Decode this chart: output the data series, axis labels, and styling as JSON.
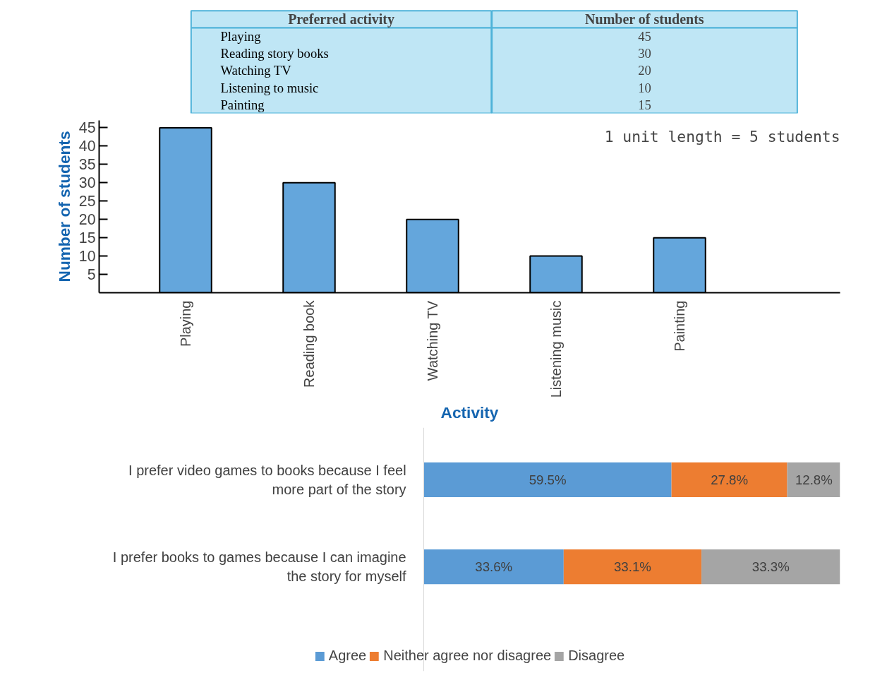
{
  "chart_data": [
    {
      "type": "other",
      "categories": [
        "Playing",
        "Reading story books",
        "Watching TV",
        "Listening to music",
        "Painting"
      ],
      "values": [
        45,
        30,
        20,
        10,
        15
      ],
      "annotations": [
        "Preferred activity",
        "Number of students"
      ],
      "color": "#bfe6f5",
      "data_labels": true
    },
    {
      "type": "bar",
      "categories": [
        "Playing",
        "Reading book",
        "Watching TV",
        "Listening music",
        "Painting"
      ],
      "values": [
        45,
        30,
        20,
        10,
        15
      ],
      "color": "#64a6dc",
      "ylim": [
        0,
        47
      ],
      "yticks": [
        5,
        10,
        15,
        20,
        25,
        30,
        35,
        40,
        45
      ],
      "xlabel": "Activity",
      "ylabel": "Number of students",
      "annotations": [
        "1 unit length = 5 students"
      ],
      "grid": false
    },
    {
      "type": "bar",
      "orientation": "horizontal",
      "stacked": true,
      "categories": [
        "I prefer video games to books because I feel more part of the story",
        "I prefer books to games because I can imagine the story for myself"
      ],
      "xlim": [
        0,
        100
      ],
      "tick_labels": "y",
      "legend": "bottom",
      "grid": false,
      "series": [
        {
          "name": "Agree",
          "color": "#5b9bd5",
          "values": [
            59.5,
            33.6
          ],
          "value_labels": [
            "59.5%",
            "33.6%"
          ]
        },
        {
          "name": "Neither agree nor disagree",
          "color": "#ed7d31",
          "values": [
            27.8,
            33.1
          ],
          "value_labels": [
            "27.8%",
            "33.1%"
          ]
        },
        {
          "name": "Disagree",
          "color": "#a5a5a5",
          "values": [
            12.8,
            33.3
          ],
          "value_labels": [
            "12.8%",
            "33.3%"
          ]
        }
      ]
    }
  ]
}
